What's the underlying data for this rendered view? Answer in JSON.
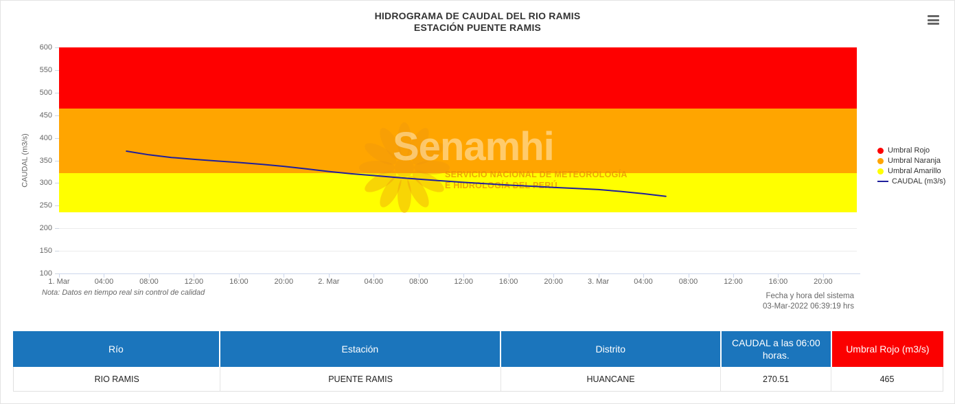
{
  "page": {
    "title_line1": "HIDROGRAMA DE CAUDAL DEL RIO RAMIS",
    "title_line2": "ESTACIÓN PUENTE RAMIS",
    "note": "Nota: Datos en tiempo real sin control de calidad",
    "system_time_label": "Fecha y hora del sistema",
    "system_time_value": "03-Mar-2022 06:39:19 hrs",
    "menu_icon": "hamburger-menu-icon"
  },
  "watermark": {
    "word": "Senamhi",
    "line1": "SERVICIO NACIONAL DE METEOROLOGÍA",
    "line2": "E HIDROLOGÍA DEL PERÚ",
    "sun_icon": "senamhi-sun-icon"
  },
  "chart_data": {
    "type": "line",
    "title": "HIDROGRAMA DE CAUDAL DEL RIO RAMIS — ESTACIÓN PUENTE RAMIS",
    "xlabel": "",
    "ylabel": "CAUDAL (m3/s)",
    "ylim": [
      100,
      600
    ],
    "yticks": [
      100,
      150,
      200,
      250,
      300,
      350,
      400,
      450,
      500,
      550,
      600
    ],
    "x_hours_range": [
      0,
      71
    ],
    "grid": true,
    "legend_position": "right",
    "xticks": [
      {
        "hour": 0,
        "label": "1. Mar"
      },
      {
        "hour": 4,
        "label": "04:00"
      },
      {
        "hour": 8,
        "label": "08:00"
      },
      {
        "hour": 12,
        "label": "12:00"
      },
      {
        "hour": 16,
        "label": "16:00"
      },
      {
        "hour": 20,
        "label": "20:00"
      },
      {
        "hour": 24,
        "label": "2. Mar"
      },
      {
        "hour": 28,
        "label": "04:00"
      },
      {
        "hour": 32,
        "label": "08:00"
      },
      {
        "hour": 36,
        "label": "12:00"
      },
      {
        "hour": 40,
        "label": "16:00"
      },
      {
        "hour": 44,
        "label": "20:00"
      },
      {
        "hour": 48,
        "label": "3. Mar"
      },
      {
        "hour": 52,
        "label": "04:00"
      },
      {
        "hour": 56,
        "label": "08:00"
      },
      {
        "hour": 60,
        "label": "12:00"
      },
      {
        "hour": 64,
        "label": "16:00"
      },
      {
        "hour": 68,
        "label": "20:00"
      }
    ],
    "bands": [
      {
        "name": "Umbral Rojo",
        "from": 465,
        "to": 600,
        "color": "#fe0000"
      },
      {
        "name": "Umbral Naranja",
        "from": 322,
        "to": 465,
        "color": "#ffa500"
      },
      {
        "name": "Umbral Amarillo",
        "from": 235,
        "to": 322,
        "color": "#ffff00"
      }
    ],
    "series": [
      {
        "name": "CAUDAL (m3/s)",
        "color": "#1f1f9c",
        "points": [
          [
            6,
            370.5
          ],
          [
            8,
            362.5
          ],
          [
            10,
            356.5
          ],
          [
            12,
            352.5
          ],
          [
            14,
            349
          ],
          [
            16,
            345.5
          ],
          [
            18,
            341.5
          ],
          [
            20,
            337
          ],
          [
            22,
            331.5
          ],
          [
            24,
            325.5
          ],
          [
            26,
            320.5
          ],
          [
            28,
            316.5
          ],
          [
            30,
            312.5
          ],
          [
            32,
            308.5
          ],
          [
            34,
            305
          ],
          [
            36,
            301.5
          ],
          [
            38,
            298.5
          ],
          [
            40,
            295.5
          ],
          [
            42,
            293
          ],
          [
            44,
            290.5
          ],
          [
            46,
            288
          ],
          [
            48,
            285.5
          ],
          [
            50,
            281.5
          ],
          [
            52,
            276.5
          ],
          [
            54,
            270.51
          ]
        ]
      }
    ],
    "legend": [
      {
        "label": "Umbral Rojo",
        "marker": "circle",
        "color": "#fe0000"
      },
      {
        "label": "Umbral Naranja",
        "marker": "circle",
        "color": "#ffa500"
      },
      {
        "label": "Umbral Amarillo",
        "marker": "circle",
        "color": "#ffff00"
      },
      {
        "label": "CAUDAL (m3/s)",
        "marker": "line",
        "color": "#1f1f9c"
      }
    ]
  },
  "table": {
    "headers": [
      {
        "label": "Río",
        "bg": "#1b75bc"
      },
      {
        "label": "Estación",
        "bg": "#1b75bc"
      },
      {
        "label": "Distrito",
        "bg": "#1b75bc"
      },
      {
        "label": "CAUDAL a las 06:00 horas.",
        "bg": "#1b75bc"
      },
      {
        "label": "Umbral Rojo (m3/s)",
        "bg": "#fb0000"
      }
    ],
    "rows": [
      [
        "RIO RAMIS",
        "PUENTE RAMIS",
        "HUANCANE",
        "270.51",
        "465"
      ]
    ]
  }
}
